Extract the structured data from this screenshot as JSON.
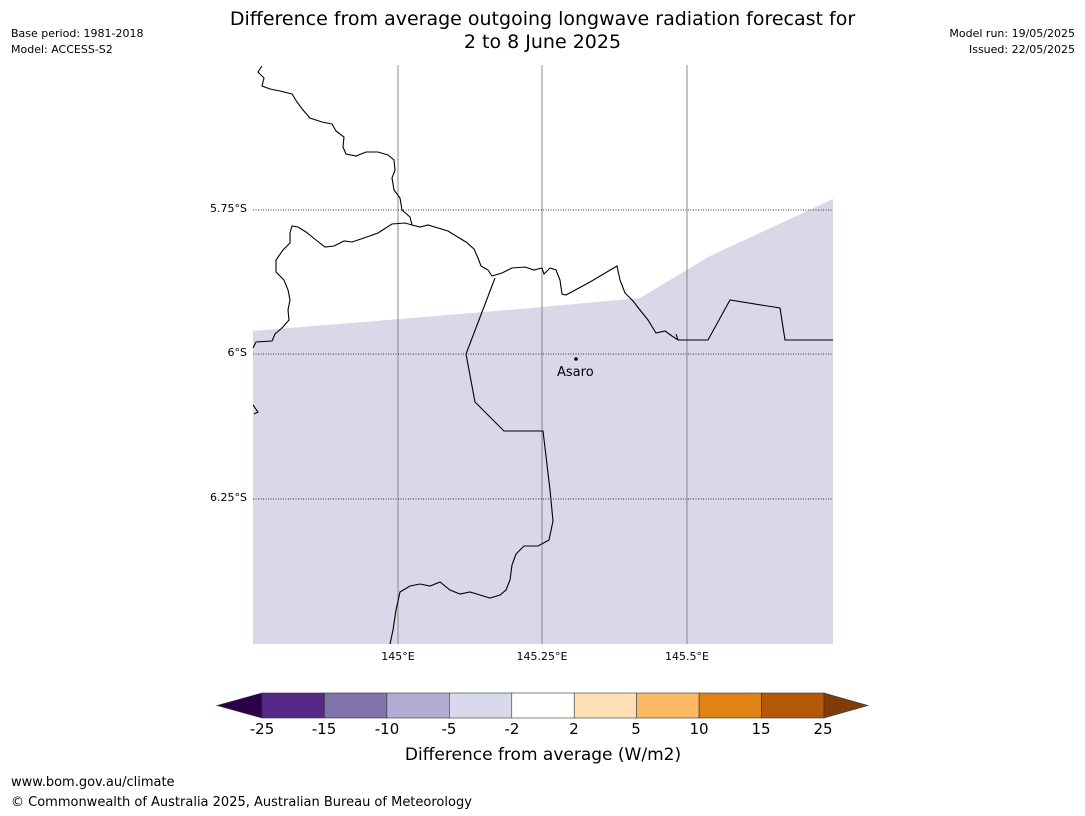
{
  "title_line1": "Difference from average outgoing longwave radiation forecast for",
  "title_line2": "2 to 8 June 2025",
  "meta_left": [
    "Base period: 1981-2018",
    "Model: ACCESS-S2"
  ],
  "meta_right": [
    "Model run: 19/05/2025",
    "Issued: 22/05/2025"
  ],
  "map": {
    "latitude_labels": [
      "5.75°S",
      "6°S",
      "6.25°S"
    ],
    "longitude_labels": [
      "145°E",
      "145.25°E",
      "145.5°E"
    ],
    "place": "Asaro",
    "fill_color": "#d8d8e9",
    "fill_category": "-5 to -2"
  },
  "colorbar": {
    "title": "Difference from average (W/m2)",
    "ticks": [
      "-25",
      "-15",
      "-10",
      "-5",
      "-2",
      "2",
      "5",
      "10",
      "15",
      "25"
    ],
    "colors": [
      "#2d004b",
      "#542788",
      "#8073ac",
      "#b2abd2",
      "#d8daeb",
      "#ffffff",
      "#fee0b6",
      "#fdb863",
      "#e08214",
      "#b35806",
      "#7f3b08"
    ]
  },
  "footer": {
    "url": "www.bom.gov.au/climate",
    "copyright": "© Commonwealth of Australia 2025, Australian Bureau of Meteorology"
  }
}
